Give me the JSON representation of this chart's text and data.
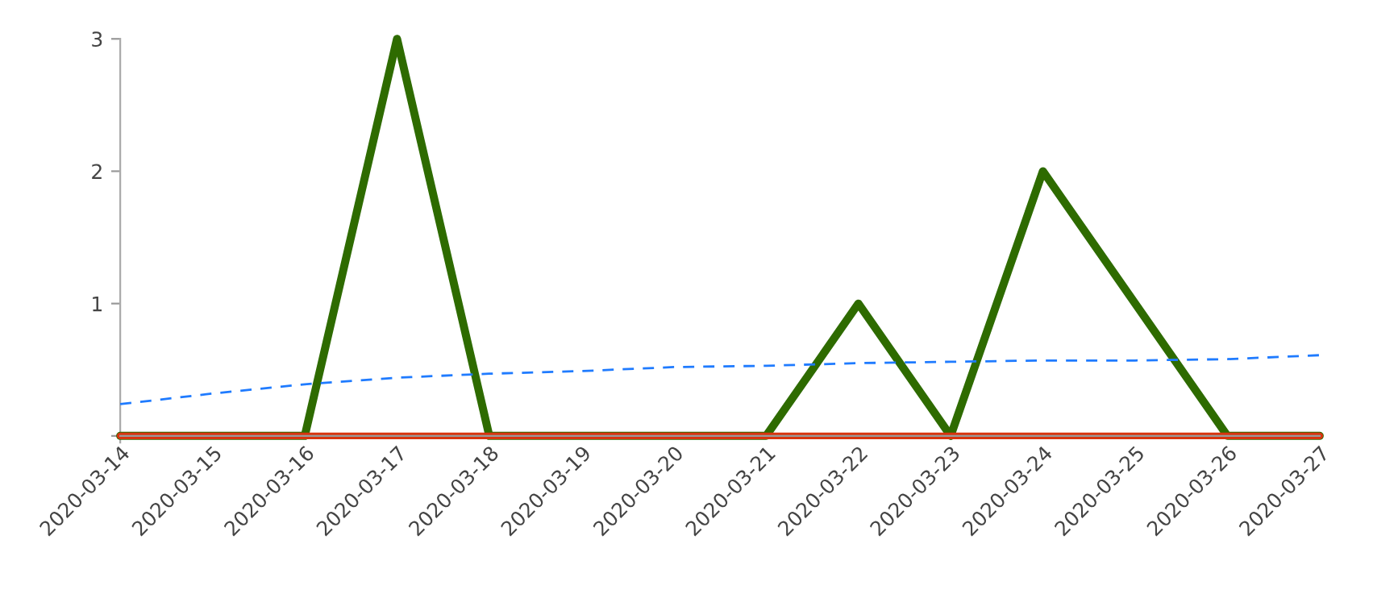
{
  "chart_data": {
    "type": "line",
    "x": [
      "2020-03-14",
      "2020-03-15",
      "2020-03-16",
      "2020-03-17",
      "2020-03-18",
      "2020-03-19",
      "2020-03-20",
      "2020-03-21",
      "2020-03-22",
      "2020-03-23",
      "2020-03-24",
      "2020-03-25",
      "2020-03-26",
      "2020-03-27"
    ],
    "series": [
      {
        "color": "#2e6b00",
        "values": [
          0,
          0,
          0,
          3,
          0,
          0,
          0,
          0,
          1,
          0,
          2,
          1,
          0,
          0
        ],
        "line_style": "solid"
      },
      {
        "color": "#1f7bff",
        "values": [
          0.24,
          0.32,
          0.39,
          0.44,
          0.47,
          0.49,
          0.52,
          0.53,
          0.55,
          0.56,
          0.57,
          0.57,
          0.58,
          0.61
        ],
        "line_style": "dashed"
      },
      {
        "color": "#d8340f",
        "values": [
          0,
          0,
          0,
          0,
          0,
          0,
          0,
          0,
          0,
          0,
          0,
          0,
          0,
          0
        ],
        "line_style": "solid"
      }
    ],
    "xlim": [
      "2020-03-14",
      "2020-03-27"
    ],
    "xticks": [
      "2020-03-14",
      "2020-03-15",
      "2020-03-16",
      "2020-03-17",
      "2020-03-18",
      "2020-03-19",
      "2020-03-20",
      "2020-03-21",
      "2020-03-22",
      "2020-03-23",
      "2020-03-24",
      "2020-03-25",
      "2020-03-26",
      "2020-03-27"
    ],
    "ylim": [
      -0.05,
      3
    ],
    "yticks": [
      {
        "value": 0,
        "label": null
      },
      1,
      2,
      3
    ],
    "grid": false,
    "legend": false
  }
}
